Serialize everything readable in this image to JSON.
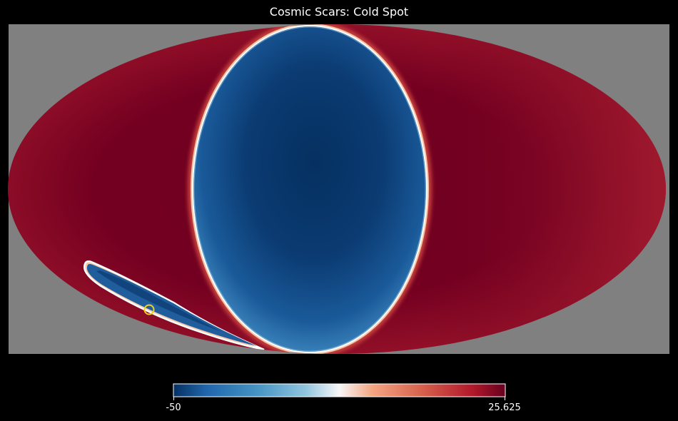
{
  "chart_data": {
    "type": "heatmap",
    "projection": "mollweide",
    "title": "Cosmic Scars: Cold Spot",
    "colormap": "RdBu_r",
    "colorbar": {
      "min": -50,
      "max": 25.625,
      "min_label": "-50",
      "max_label": "25.625",
      "orientation": "horizontal",
      "placement": "bottom"
    },
    "background_color": "#808080",
    "marker": {
      "shape": "circle",
      "color": "#f2d21b",
      "lon_deg": -97,
      "lat_deg": -56
    }
  }
}
